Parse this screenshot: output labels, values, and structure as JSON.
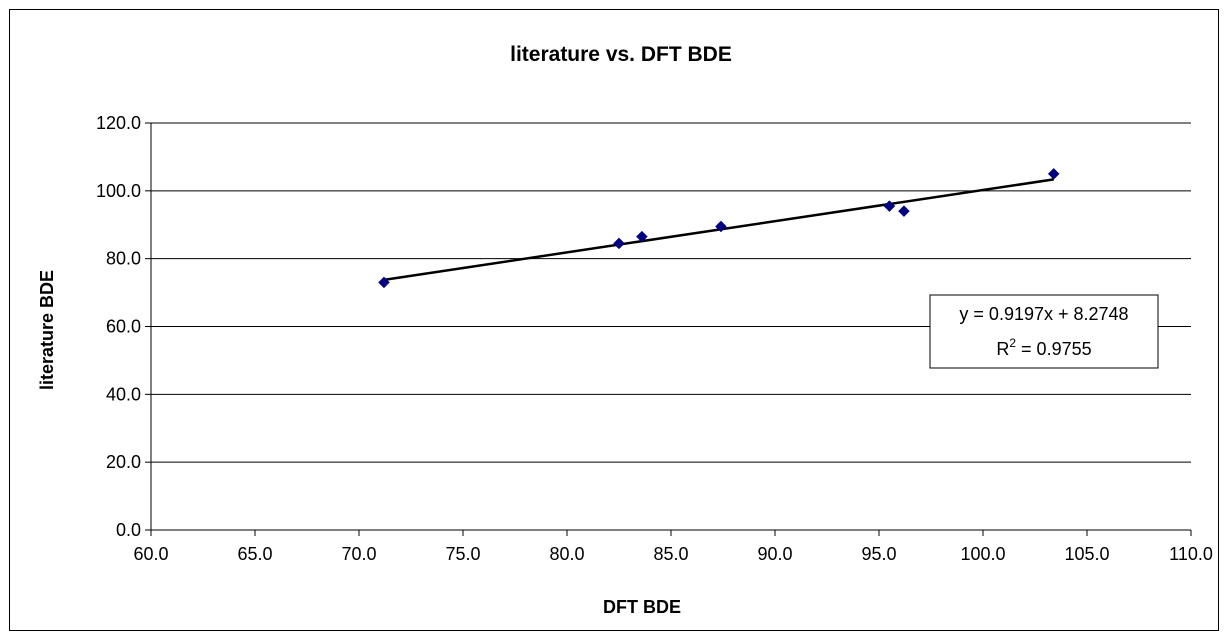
{
  "chart_data": {
    "type": "scatter",
    "title": "literature vs. DFT BDE",
    "xlabel": "DFT BDE",
    "ylabel": "literature BDE",
    "xlim": [
      60.0,
      110.0
    ],
    "ylim": [
      0.0,
      120.0
    ],
    "x_ticks": [
      "60.0",
      "65.0",
      "70.0",
      "75.0",
      "80.0",
      "85.0",
      "90.0",
      "95.0",
      "100.0",
      "105.0",
      "110.0"
    ],
    "y_ticks": [
      "0.0",
      "20.0",
      "40.0",
      "60.0",
      "80.0",
      "100.0",
      "120.0"
    ],
    "grid": "horizontal",
    "series": [
      {
        "x": [
          71.2,
          82.5,
          83.6,
          87.4,
          95.5,
          96.2,
          103.4
        ],
        "y": [
          73.0,
          84.5,
          86.5,
          89.5,
          95.5,
          94.0,
          105.0
        ],
        "color": "#000080",
        "marker": "diamond"
      }
    ],
    "trendline": {
      "type": "linear",
      "slope": 0.9197,
      "intercept": 8.2748,
      "x_range": [
        71.2,
        103.4
      ],
      "color": "#000000",
      "equation_label": "y = 0.9197x + 8.2748",
      "r2_prefix": "R",
      "r2_exponent": "2",
      "r2_value": " = 0.9755"
    }
  }
}
